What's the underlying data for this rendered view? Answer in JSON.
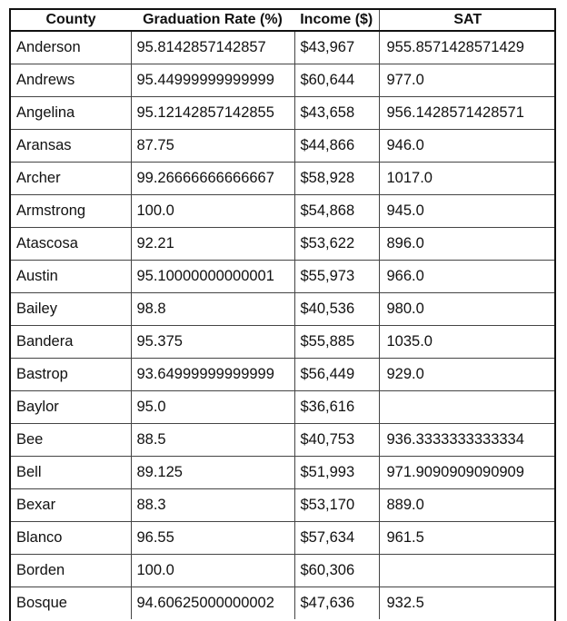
{
  "headers": {
    "county": "County",
    "graduation_rate": "Graduation Rate (%)",
    "income": "Income ($)",
    "sat": "SAT"
  },
  "rows": [
    {
      "county": "Anderson",
      "graduation_rate": "95.8142857142857",
      "income": "$43,967",
      "sat": "955.8571428571429"
    },
    {
      "county": "Andrews",
      "graduation_rate": "95.44999999999999",
      "income": "$60,644",
      "sat": "977.0"
    },
    {
      "county": "Angelina",
      "graduation_rate": "95.12142857142855",
      "income": "$43,658",
      "sat": "956.1428571428571"
    },
    {
      "county": "Aransas",
      "graduation_rate": "87.75",
      "income": "$44,866",
      "sat": "946.0"
    },
    {
      "county": "Archer",
      "graduation_rate": "99.26666666666667",
      "income": "$58,928",
      "sat": "1017.0"
    },
    {
      "county": "Armstrong",
      "graduation_rate": "100.0",
      "income": "$54,868",
      "sat": "945.0"
    },
    {
      "county": "Atascosa",
      "graduation_rate": "92.21",
      "income": "$53,622",
      "sat": "896.0"
    },
    {
      "county": "Austin",
      "graduation_rate": "95.10000000000001",
      "income": "$55,973",
      "sat": "966.0"
    },
    {
      "county": "Bailey",
      "graduation_rate": "98.8",
      "income": "$40,536",
      "sat": "980.0"
    },
    {
      "county": "Bandera",
      "graduation_rate": "95.375",
      "income": "$55,885",
      "sat": "1035.0"
    },
    {
      "county": "Bastrop",
      "graduation_rate": "93.64999999999999",
      "income": "$56,449",
      "sat": "929.0"
    },
    {
      "county": "Baylor",
      "graduation_rate": "95.0",
      "income": "$36,616",
      "sat": ""
    },
    {
      "county": "Bee",
      "graduation_rate": "88.5",
      "income": "$40,753",
      "sat": "936.3333333333334"
    },
    {
      "county": "Bell",
      "graduation_rate": "89.125",
      "income": "$51,993",
      "sat": "971.9090909090909"
    },
    {
      "county": "Bexar",
      "graduation_rate": "88.3",
      "income": "$53,170",
      "sat": "889.0"
    },
    {
      "county": "Blanco",
      "graduation_rate": "96.55",
      "income": "$57,634",
      "sat": "961.5"
    },
    {
      "county": "Borden",
      "graduation_rate": "100.0",
      "income": "$60,306",
      "sat": ""
    },
    {
      "county": "Bosque",
      "graduation_rate": "94.60625000000002",
      "income": "$47,636",
      "sat": "932.5"
    }
  ]
}
